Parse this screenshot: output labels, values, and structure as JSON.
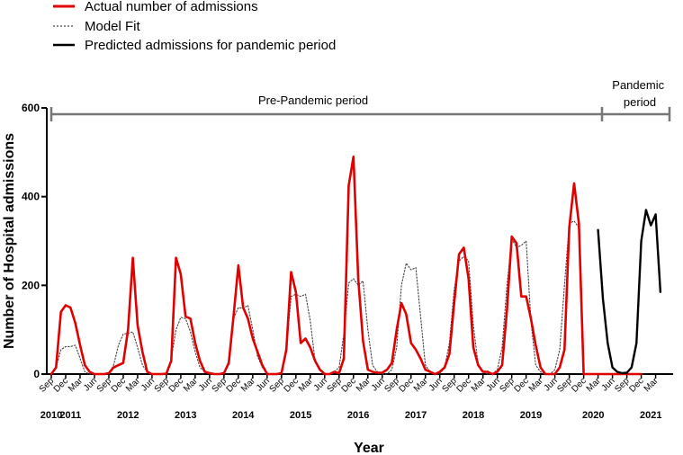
{
  "chart_data": {
    "type": "line",
    "xlabel": "Year",
    "ylabel": "Number of Hospital admissions",
    "ylim": [
      0,
      600
    ],
    "yticks": [
      0,
      200,
      400,
      600
    ],
    "x_start": "2010-09",
    "x_end": "2021-04",
    "month_tick_labels": [
      "Sep",
      "Dec",
      "Mar",
      "Jun"
    ],
    "year_labels": [
      {
        "label": "2010",
        "month": "2010-09"
      },
      {
        "label": "2011",
        "month": "2011-01"
      },
      {
        "label": "2012",
        "month": "2012-01"
      },
      {
        "label": "2013",
        "month": "2013-01"
      },
      {
        "label": "2014",
        "month": "2014-01"
      },
      {
        "label": "2015",
        "month": "2015-01"
      },
      {
        "label": "2016",
        "month": "2016-01"
      },
      {
        "label": "2017",
        "month": "2017-01"
      },
      {
        "label": "2018",
        "month": "2018-01"
      },
      {
        "label": "2019",
        "month": "2019-01"
      },
      {
        "label": "2020",
        "month": "2020-02"
      },
      {
        "label": "2021",
        "month": "2021-02"
      }
    ],
    "periods": [
      {
        "label": "Pre-Pandemic period",
        "start": "2010-09",
        "end": "2020-04"
      },
      {
        "label": "Pandemic\nperiod",
        "start": "2020-04",
        "end": "2021-04"
      }
    ],
    "series": [
      {
        "name": "Actual number of admissions",
        "color": "#e00000",
        "style": "solid",
        "start": "2010-09",
        "values": [
          0,
          15,
          140,
          155,
          150,
          115,
          65,
          20,
          5,
          0,
          0,
          0,
          2,
          15,
          20,
          25,
          100,
          262,
          110,
          50,
          5,
          0,
          0,
          0,
          1,
          30,
          262,
          225,
          130,
          125,
          70,
          30,
          5,
          2,
          0,
          0,
          2,
          25,
          130,
          245,
          150,
          125,
          80,
          50,
          20,
          0,
          0,
          0,
          2,
          55,
          230,
          185,
          70,
          80,
          60,
          30,
          10,
          0,
          0,
          5,
          2,
          35,
          425,
          490,
          215,
          75,
          10,
          5,
          3,
          3,
          10,
          25,
          100,
          160,
          135,
          70,
          55,
          35,
          10,
          5,
          0,
          5,
          15,
          45,
          160,
          270,
          285,
          215,
          60,
          20,
          5,
          5,
          0,
          5,
          20,
          145,
          310,
          295,
          175,
          175,
          125,
          65,
          15,
          0,
          0,
          0,
          15,
          55,
          330,
          430,
          340,
          0,
          0,
          0,
          0,
          0,
          0,
          0,
          0,
          0,
          0,
          0,
          0,
          0
        ]
      },
      {
        "name": "Model Fit",
        "color": "#444444",
        "style": "dotted",
        "start": "2010-09",
        "values": [
          0,
          15,
          55,
          62,
          62,
          65,
          35,
          5,
          0,
          0,
          0,
          0,
          2,
          20,
          65,
          90,
          92,
          95,
          60,
          20,
          5,
          0,
          0,
          0,
          2,
          35,
          100,
          128,
          125,
          95,
          50,
          15,
          5,
          0,
          0,
          0,
          2,
          30,
          125,
          150,
          148,
          155,
          100,
          40,
          15,
          0,
          0,
          0,
          2,
          55,
          175,
          180,
          175,
          180,
          120,
          30,
          10,
          0,
          0,
          5,
          15,
          90,
          205,
          215,
          200,
          210,
          100,
          20,
          5,
          0,
          0,
          10,
          60,
          200,
          250,
          235,
          240,
          130,
          20,
          5,
          0,
          0,
          15,
          70,
          190,
          255,
          265,
          255,
          110,
          20,
          5,
          0,
          0,
          10,
          60,
          200,
          305,
          285,
          290,
          300,
          120,
          20,
          5,
          0,
          0,
          10,
          55,
          200,
          340,
          345,
          330
        ]
      },
      {
        "name": "Predicted admissions for pandemic period",
        "color": "#000000",
        "style": "solid",
        "start": "2020-03",
        "values": [
          325,
          170,
          70,
          15,
          5,
          2,
          3,
          15,
          70,
          300,
          370,
          335,
          360,
          185
        ]
      }
    ]
  }
}
